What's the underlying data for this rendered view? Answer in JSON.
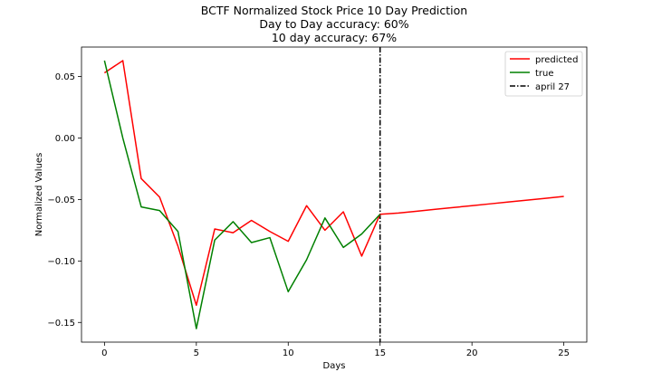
{
  "chart_data": {
    "type": "line",
    "title": [
      "BCTF Normalized Stock Price 10 Day Prediction",
      "Day to Day accuracy: 60%",
      "10 day accuracy: 67%"
    ],
    "xlabel": "Days",
    "ylabel": "Normalized Values",
    "xlim": [
      -1.25,
      26.25
    ],
    "ylim": [
      -0.166,
      0.074
    ],
    "xticks": [
      0,
      5,
      10,
      15,
      20,
      25
    ],
    "yticks": [
      0.05,
      0.0,
      -0.05,
      -0.1,
      -0.15
    ],
    "ytick_labels": [
      "0.05",
      "0.00",
      "−0.05",
      "−0.10",
      "−0.15"
    ],
    "series": [
      {
        "name": "predicted",
        "color": "#ff0000",
        "x": [
          0,
          1,
          2,
          3,
          4,
          5,
          6,
          7,
          8,
          9,
          10,
          11,
          12,
          13,
          14,
          15,
          16,
          17,
          18,
          19,
          20,
          21,
          22,
          23,
          24,
          25
        ],
        "y": [
          0.053,
          0.063,
          -0.033,
          -0.048,
          -0.088,
          -0.136,
          -0.074,
          -0.077,
          -0.067,
          -0.076,
          -0.084,
          -0.055,
          -0.075,
          -0.06,
          -0.096,
          -0.062,
          -0.061,
          -0.0595,
          -0.058,
          -0.0565,
          -0.055,
          -0.0535,
          -0.052,
          -0.0505,
          -0.049,
          -0.0475
        ]
      },
      {
        "name": "true",
        "color": "#008000",
        "x": [
          0,
          1,
          2,
          3,
          4,
          5,
          6,
          7,
          8,
          9,
          10,
          11,
          12,
          13,
          14,
          15
        ],
        "y": [
          0.063,
          0.0,
          -0.056,
          -0.059,
          -0.076,
          -0.155,
          -0.083,
          -0.068,
          -0.085,
          -0.081,
          -0.125,
          -0.099,
          -0.065,
          -0.089,
          -0.078,
          -0.062
        ]
      }
    ],
    "vline": {
      "name": "april 27",
      "x": 15,
      "color": "#000000",
      "style": "dashdot"
    },
    "legend": "top-right",
    "grid": false
  }
}
